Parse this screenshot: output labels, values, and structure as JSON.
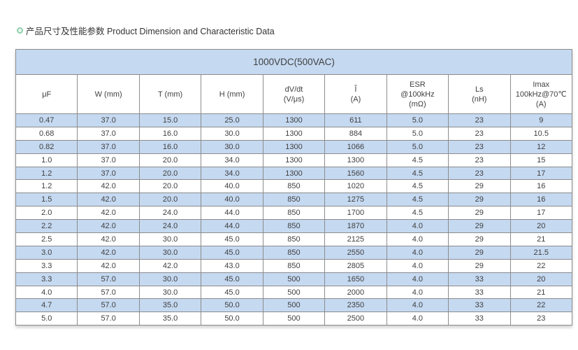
{
  "page": {
    "section_title": "产品尺寸及性能参数 Product Dimension and Characteristic Data"
  },
  "table": {
    "group_header": "1000VDC(500VAC)",
    "columns": [
      {
        "lines": [
          "μF"
        ]
      },
      {
        "lines": [
          "W (mm)"
        ]
      },
      {
        "lines": [
          "T (mm)"
        ]
      },
      {
        "lines": [
          "H (mm)"
        ]
      },
      {
        "lines": [
          "dV/dt",
          "(V/μs)"
        ]
      },
      {
        "lines": [
          "Î",
          "(A)"
        ]
      },
      {
        "lines": [
          "ESR",
          "@100kHz",
          "(mΩ)"
        ]
      },
      {
        "lines": [
          "Ls",
          "(nH)"
        ]
      },
      {
        "lines": [
          "Imax",
          "100kHz@70℃",
          "(A)"
        ]
      }
    ],
    "rows": [
      [
        "0.47",
        "37.0",
        "15.0",
        "25.0",
        "1300",
        "611",
        "5.0",
        "23",
        "9"
      ],
      [
        "0.68",
        "37.0",
        "16.0",
        "30.0",
        "1300",
        "884",
        "5.0",
        "23",
        "10.5"
      ],
      [
        "0.82",
        "37.0",
        "16.0",
        "30.0",
        "1300",
        "1066",
        "5.0",
        "23",
        "12"
      ],
      [
        "1.0",
        "37.0",
        "20.0",
        "34.0",
        "1300",
        "1300",
        "4.5",
        "23",
        "15"
      ],
      [
        "1.2",
        "37.0",
        "20.0",
        "34.0",
        "1300",
        "1560",
        "4.5",
        "23",
        "17"
      ],
      [
        "1.2",
        "42.0",
        "20.0",
        "40.0",
        "850",
        "1020",
        "4.5",
        "29",
        "16"
      ],
      [
        "1.5",
        "42.0",
        "20.0",
        "40.0",
        "850",
        "1275",
        "4.5",
        "29",
        "16"
      ],
      [
        "2.0",
        "42.0",
        "24.0",
        "44.0",
        "850",
        "1700",
        "4.5",
        "29",
        "17"
      ],
      [
        "2.2",
        "42.0",
        "24.0",
        "44.0",
        "850",
        "1870",
        "4.0",
        "29",
        "20"
      ],
      [
        "2.5",
        "42.0",
        "30.0",
        "45.0",
        "850",
        "2125",
        "4.0",
        "29",
        "21"
      ],
      [
        "3.0",
        "42.0",
        "30.0",
        "45.0",
        "850",
        "2550",
        "4.0",
        "29",
        "21.5"
      ],
      [
        "3.3",
        "42.0",
        "42.0",
        "43.0",
        "850",
        "2805",
        "4.0",
        "29",
        "22"
      ],
      [
        "3.3",
        "57.0",
        "30.0",
        "45.0",
        "500",
        "1650",
        "4.0",
        "33",
        "20"
      ],
      [
        "4.0",
        "57.0",
        "30.0",
        "45.0",
        "500",
        "2000",
        "4.0",
        "33",
        "21"
      ],
      [
        "4.7",
        "57.0",
        "35.0",
        "50.0",
        "500",
        "2350",
        "4.0",
        "33",
        "22"
      ],
      [
        "5.0",
        "57.0",
        "35.0",
        "50.0",
        "500",
        "2500",
        "4.0",
        "33",
        "23"
      ]
    ]
  },
  "colors": {
    "row_highlight": "#c5d9f1",
    "row_plain": "#ffffff",
    "border": "#8c8c8c",
    "outer_border": "#6f6f6f",
    "text": "#3f3f3f",
    "bullet_green": "#90cfae"
  }
}
